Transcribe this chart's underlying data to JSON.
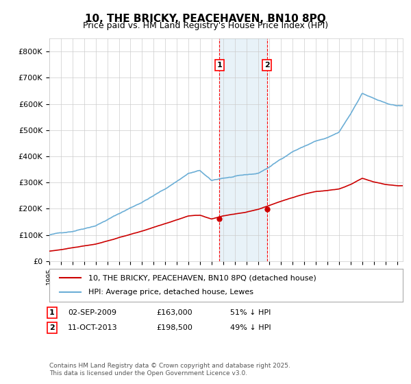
{
  "title": "10, THE BRICKY, PEACEHAVEN, BN10 8PQ",
  "subtitle": "Price paid vs. HM Land Registry's House Price Index (HPI)",
  "ylabel_ticks": [
    "£0",
    "£100K",
    "£200K",
    "£300K",
    "£400K",
    "£500K",
    "£600K",
    "£700K",
    "£800K"
  ],
  "ytick_values": [
    0,
    100000,
    200000,
    300000,
    400000,
    500000,
    600000,
    700000,
    800000
  ],
  "ylim": [
    0,
    850000
  ],
  "xlim_start": 1995.0,
  "xlim_end": 2025.5,
  "hpi_color": "#6baed6",
  "price_color": "#cc0000",
  "transaction1_date": 2009.67,
  "transaction1_price": 163000,
  "transaction2_date": 2013.78,
  "transaction2_price": 198500,
  "shade_start": 2009.67,
  "shade_end": 2013.78,
  "footer": "Contains HM Land Registry data © Crown copyright and database right 2025.\nThis data is licensed under the Open Government Licence v3.0.",
  "legend_line1": "10, THE BRICKY, PEACEHAVEN, BN10 8PQ (detached house)",
  "legend_line2": "HPI: Average price, detached house, Lewes",
  "table_row1": "1    02-SEP-2009         £163,000       51% ↓ HPI",
  "table_row2": "2    11-OCT-2013         £198,500       49% ↓ HPI"
}
